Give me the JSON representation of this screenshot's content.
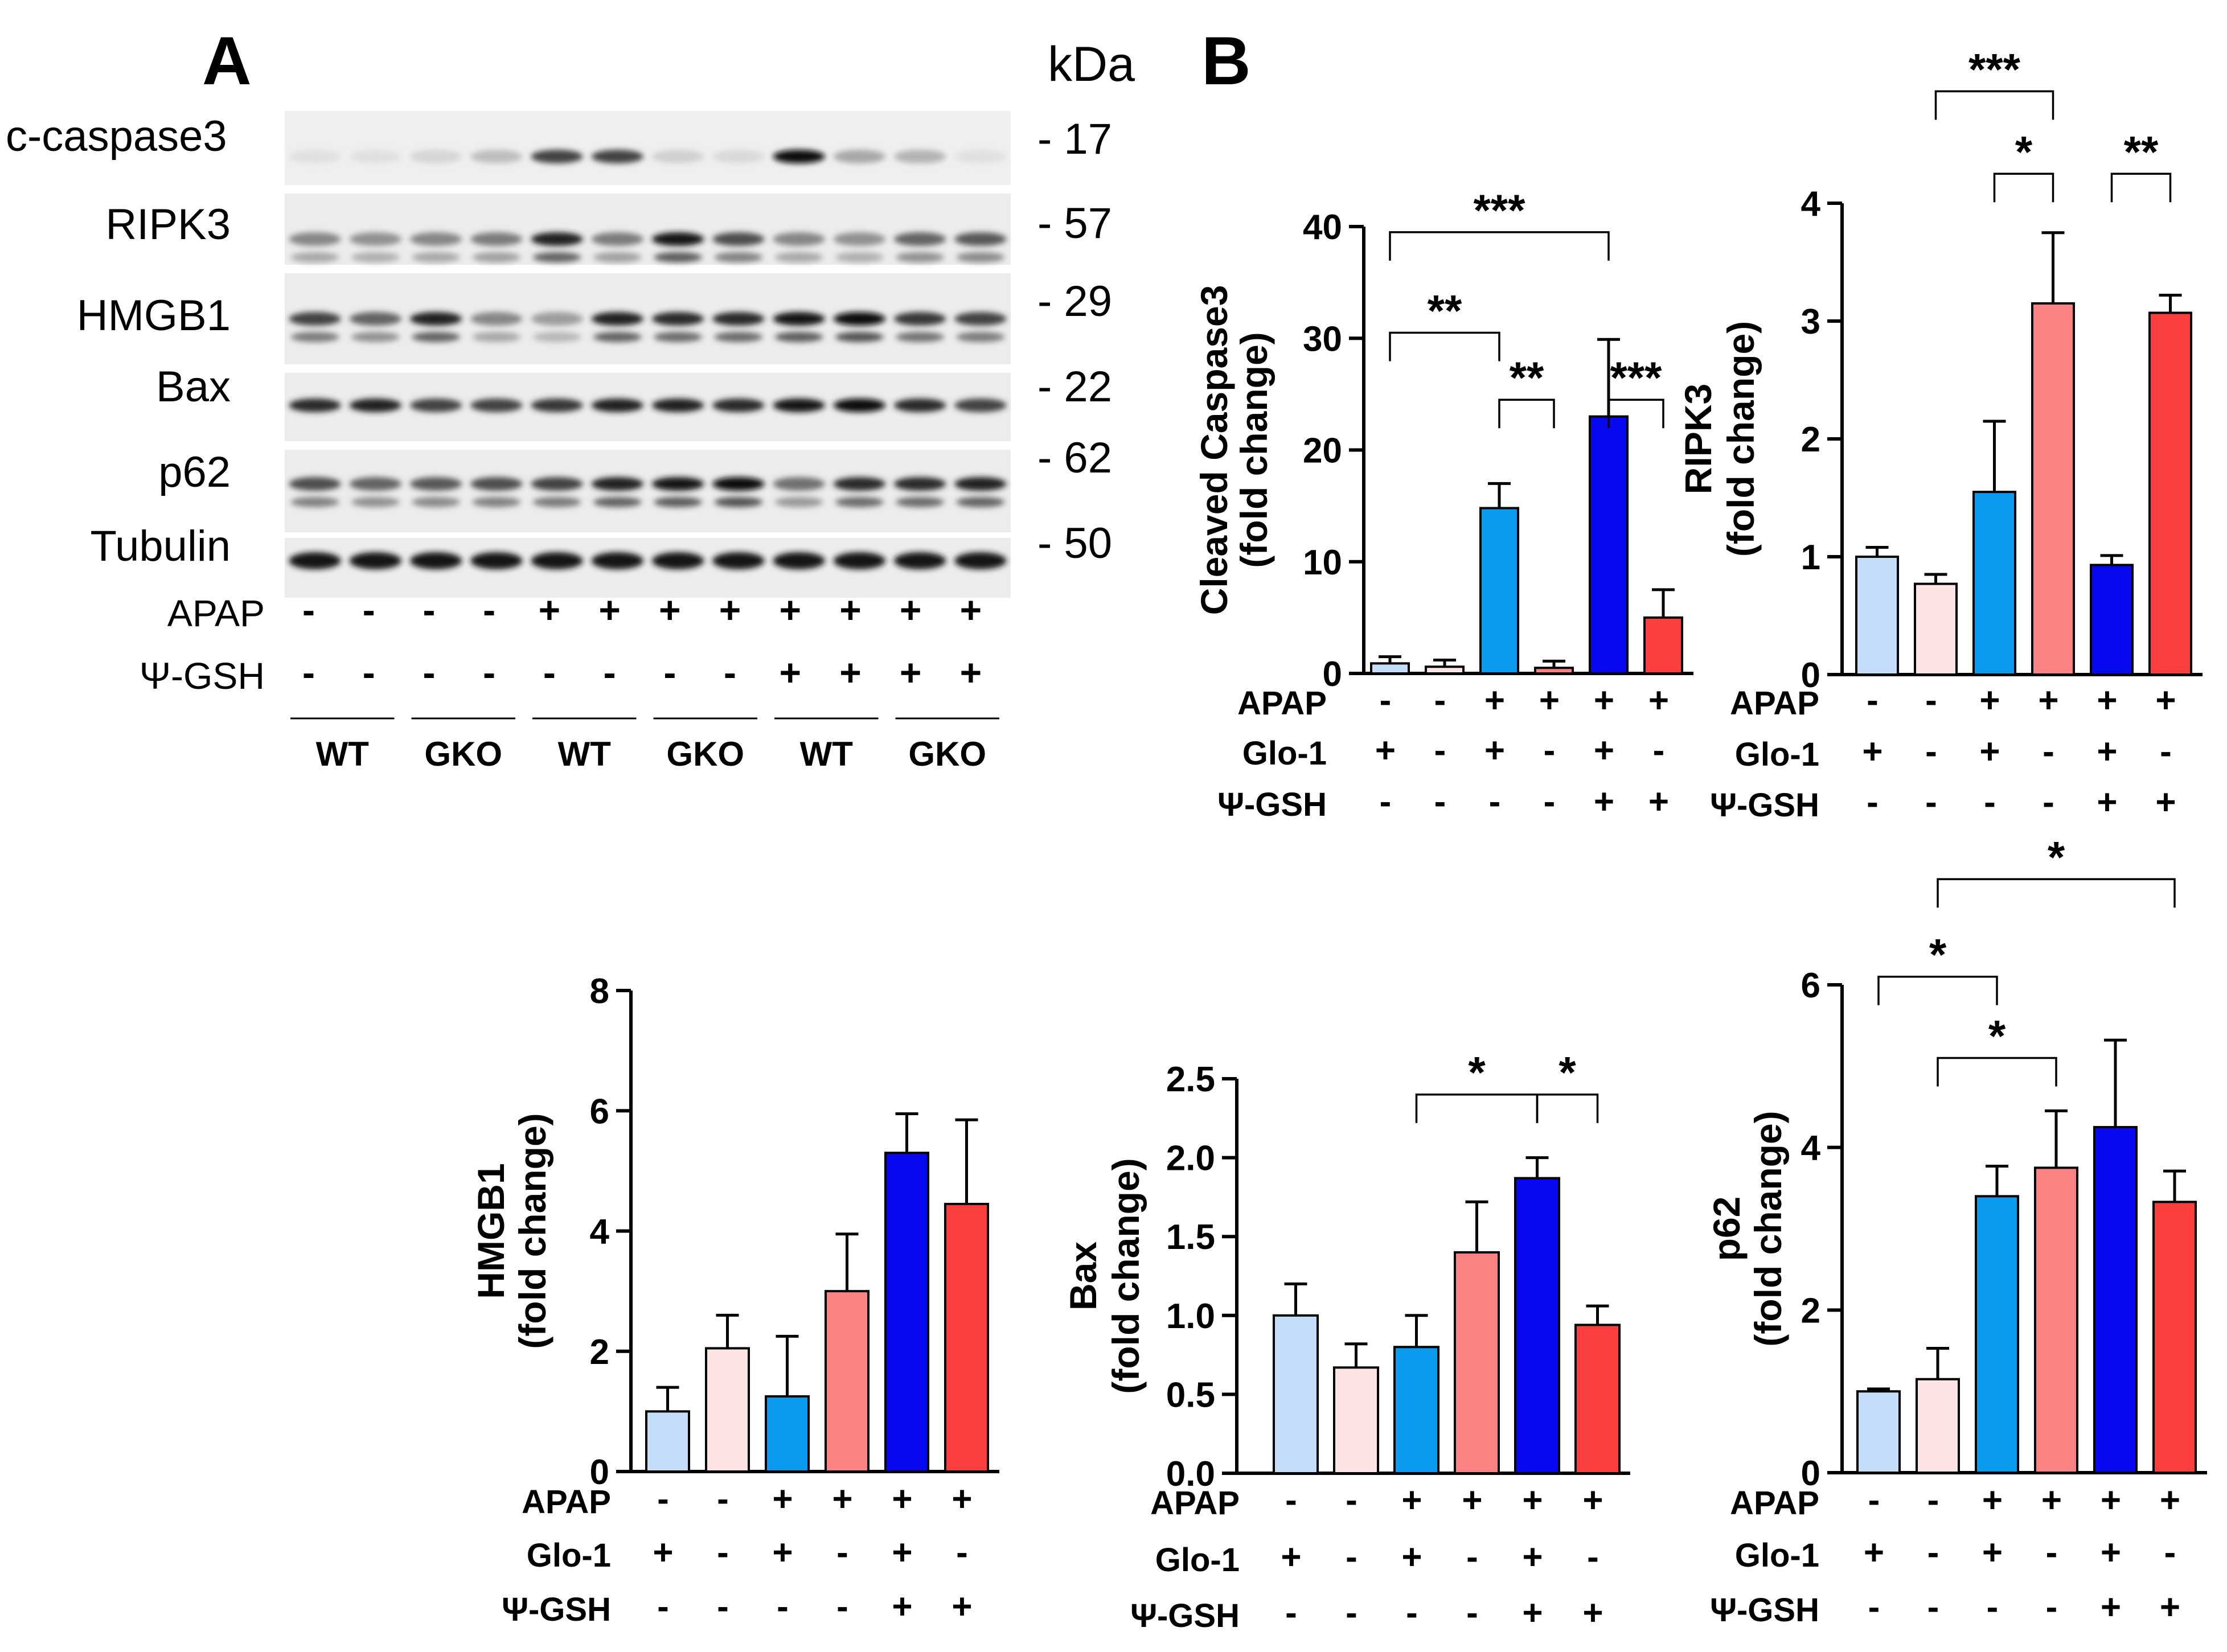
{
  "panelA": {
    "label": "A",
    "kda_header": "kDa",
    "blots": [
      {
        "name": "c-caspase3",
        "kda": "- 17",
        "bands": [
          0.05,
          0.05,
          0.1,
          0.2,
          0.75,
          0.75,
          0.12,
          0.08,
          1.0,
          0.3,
          0.25,
          0.05
        ]
      },
      {
        "name": "RIPK3",
        "kda": "- 57",
        "bands": [
          0.45,
          0.4,
          0.45,
          0.5,
          0.9,
          0.5,
          0.95,
          0.7,
          0.45,
          0.4,
          0.6,
          0.65
        ]
      },
      {
        "name": "HMGB1",
        "kda": "- 29",
        "bands": [
          0.75,
          0.6,
          0.9,
          0.45,
          0.35,
          0.9,
          0.85,
          0.85,
          0.95,
          1.0,
          0.8,
          0.75
        ]
      },
      {
        "name": "Bax",
        "kda": "- 22",
        "bands": [
          0.85,
          0.9,
          0.75,
          0.75,
          0.8,
          0.9,
          0.9,
          0.85,
          0.95,
          1.0,
          0.85,
          0.75
        ]
      },
      {
        "name": "p62",
        "kda": "- 62",
        "bands": [
          0.7,
          0.6,
          0.65,
          0.7,
          0.75,
          0.9,
          0.95,
          1.0,
          0.55,
          0.85,
          0.85,
          0.9
        ]
      },
      {
        "name": "Tubulin",
        "kda": "- 50",
        "bands": [
          0.95,
          0.95,
          0.95,
          0.95,
          0.95,
          0.95,
          0.95,
          0.95,
          0.95,
          0.95,
          0.95,
          0.95
        ]
      }
    ],
    "rows": [
      {
        "label": "APAP",
        "values": [
          "-",
          "-",
          "-",
          "-",
          "+",
          "+",
          "+",
          "+",
          "+",
          "+",
          "+",
          "+"
        ]
      },
      {
        "label": "Ψ-GSH",
        "values": [
          "-",
          "-",
          "-",
          "-",
          "-",
          "-",
          "-",
          "-",
          "+",
          "+",
          "+",
          "+"
        ]
      }
    ],
    "groups": [
      "WT",
      "GKO",
      "WT",
      "GKO",
      "WT",
      "GKO"
    ]
  },
  "panelB_label": "B",
  "colors": [
    "#c4defa",
    "#fde3e3",
    "#0a9bef",
    "#fb8282",
    "#0808f0",
    "#fb3f3f"
  ],
  "chart_data": [
    {
      "type": "bar",
      "ylabel_line1": "Cleaved Caspase3",
      "ylabel_line2": "(fold change)",
      "ylim": [
        0,
        40
      ],
      "ticks": [
        "0",
        "10",
        "20",
        "30",
        "40"
      ],
      "tick_values": [
        0,
        10,
        20,
        30,
        40
      ],
      "values": [
        0.9,
        0.6,
        14.8,
        0.5,
        23.0,
        5.0
      ],
      "errors": [
        0.6,
        0.6,
        2.2,
        0.6,
        6.9,
        2.5
      ],
      "rows": [
        {
          "label": "APAP",
          "values": [
            "-",
            "-",
            "+",
            "+",
            "+",
            "+"
          ]
        },
        {
          "label": "Glo-1",
          "values": [
            "+",
            "-",
            "+",
            "-",
            "+",
            "-"
          ]
        },
        {
          "label": "Ψ-GSH",
          "values": [
            "-",
            "-",
            "-",
            "-",
            "+",
            "+"
          ]
        }
      ],
      "sig": [
        {
          "from": 0,
          "to": 4,
          "y": 39.5,
          "label": "***"
        },
        {
          "from": 0,
          "to": 2,
          "y": 30.5,
          "label": "**"
        },
        {
          "from": 2,
          "to": 3,
          "y": 24.5,
          "label": "**"
        },
        {
          "from": 4,
          "to": 5,
          "y": 24.5,
          "label": "***"
        }
      ]
    },
    {
      "type": "bar",
      "ylabel_line1": "RIPK3",
      "ylabel_line2": "(fold change)",
      "ylim": [
        0,
        4
      ],
      "ticks": [
        "0",
        "1",
        "2",
        "3",
        "4"
      ],
      "tick_values": [
        0,
        1,
        2,
        3,
        4
      ],
      "values": [
        1.0,
        0.77,
        1.55,
        3.15,
        0.93,
        3.07
      ],
      "errors": [
        0.08,
        0.08,
        0.6,
        0.6,
        0.08,
        0.15
      ],
      "rows": [
        {
          "label": "APAP",
          "values": [
            "-",
            "-",
            "+",
            "+",
            "+",
            "+"
          ]
        },
        {
          "label": "Glo-1",
          "values": [
            "+",
            "-",
            "+",
            "-",
            "+",
            "-"
          ]
        },
        {
          "label": "Ψ-GSH",
          "values": [
            "-",
            "-",
            "-",
            "-",
            "+",
            "+"
          ]
        }
      ],
      "sig": [
        {
          "from": 1,
          "to": 3,
          "y": 4.95,
          "label": "***"
        },
        {
          "from": 2,
          "to": 3,
          "y": 4.25,
          "label": "*"
        },
        {
          "from": 4,
          "to": 5,
          "y": 4.25,
          "label": "**"
        }
      ]
    },
    {
      "type": "bar",
      "ylabel_line1": "HMGB1",
      "ylabel_line2": "(fold change)",
      "ylim": [
        0,
        8
      ],
      "ticks": [
        "0",
        "2",
        "4",
        "6",
        "8"
      ],
      "tick_values": [
        0,
        2,
        4,
        6,
        8
      ],
      "values": [
        1.0,
        2.05,
        1.25,
        3.0,
        5.3,
        4.45
      ],
      "errors": [
        0.4,
        0.55,
        1.0,
        0.95,
        0.65,
        1.4
      ],
      "rows": [
        {
          "label": "APAP",
          "values": [
            "-",
            "-",
            "+",
            "+",
            "+",
            "+"
          ]
        },
        {
          "label": "Glo-1",
          "values": [
            "+",
            "-",
            "+",
            "-",
            "+",
            "-"
          ]
        },
        {
          "label": "Ψ-GSH",
          "values": [
            "-",
            "-",
            "-",
            "-",
            "+",
            "+"
          ]
        }
      ],
      "sig": []
    },
    {
      "type": "bar",
      "ylabel_line1": "Bax",
      "ylabel_line2": "(fold change)",
      "ylim": [
        0,
        2.5
      ],
      "ticks": [
        "0.0",
        "0.5",
        "1.0",
        "1.5",
        "2.0",
        "2.5"
      ],
      "tick_values": [
        0,
        0.5,
        1.0,
        1.5,
        2.0,
        2.5
      ],
      "values": [
        1.0,
        0.67,
        0.8,
        1.4,
        1.87,
        0.94
      ],
      "errors": [
        0.2,
        0.15,
        0.2,
        0.32,
        0.13,
        0.12
      ],
      "rows": [
        {
          "label": "APAP",
          "values": [
            "-",
            "-",
            "+",
            "+",
            "+",
            "+"
          ]
        },
        {
          "label": "Glo-1",
          "values": [
            "+",
            "-",
            "+",
            "-",
            "+",
            "-"
          ]
        },
        {
          "label": "Ψ-GSH",
          "values": [
            "-",
            "-",
            "-",
            "-",
            "+",
            "+"
          ]
        }
      ],
      "sig": [
        {
          "from": 2,
          "to": 4,
          "y": 2.4,
          "label": "*"
        },
        {
          "from": 4,
          "to": 5,
          "y": 2.4,
          "label": "*"
        }
      ]
    },
    {
      "type": "bar",
      "ylabel_line1": "p62",
      "ylabel_line2": "(fold change)",
      "ylim": [
        0,
        6
      ],
      "ticks": [
        "0",
        "2",
        "4",
        "6"
      ],
      "tick_values": [
        0,
        2,
        4,
        6
      ],
      "values": [
        1.0,
        1.15,
        3.4,
        3.75,
        4.25,
        3.33
      ],
      "errors": [
        0.03,
        0.38,
        0.37,
        0.7,
        1.07,
        0.38
      ],
      "rows": [
        {
          "label": "APAP",
          "values": [
            "-",
            "-",
            "+",
            "+",
            "+",
            "+"
          ]
        },
        {
          "label": "Glo-1",
          "values": [
            "+",
            "-",
            "+",
            "-",
            "+",
            "-"
          ]
        },
        {
          "label": "Ψ-GSH",
          "values": [
            "-",
            "-",
            "-",
            "-",
            "+",
            "+"
          ]
        }
      ],
      "sig": [
        {
          "from": 1,
          "to": 5,
          "y": 7.3,
          "label": "*"
        },
        {
          "from": 0,
          "to": 2,
          "y": 6.1,
          "label": "*"
        },
        {
          "from": 1,
          "to": 3,
          "y": 5.1,
          "label": "*"
        }
      ]
    }
  ]
}
